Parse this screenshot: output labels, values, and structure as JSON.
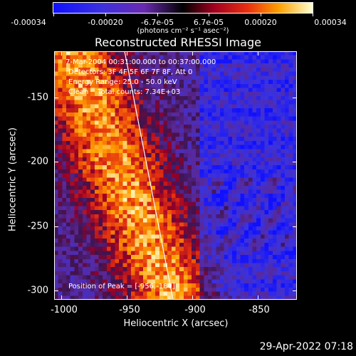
{
  "colorbar": {
    "tick_labels": [
      "-0.00034",
      "-0.00020",
      "-6.7e-05",
      "6.7e-05",
      "0.00020",
      "0.00034"
    ],
    "units": "(photons cm⁻² s⁻¹ asec⁻²)"
  },
  "title": "Reconstructed RHESSI Image",
  "info": {
    "time": "7-Mar-2004 00:31:00.000 to 00:37:00.000",
    "detectors": "Detectors: 3F 4F 5F 6F 7F 8F, Att 0",
    "energy": "Energy Range: 25.0 - 50.0 keV",
    "clean": "Clean    Total counts: 7.34E+03",
    "peak": "Position of Peak = [-956,-187]"
  },
  "axes": {
    "xlabel": "Heliocentric X (arcsec)",
    "ylabel": "Heliocentric Y (arcsec)",
    "xticks": [
      "-1000",
      "-950",
      "-900",
      "-850"
    ],
    "yticks": [
      "-150",
      "-200",
      "-250",
      "-300"
    ]
  },
  "timestamp": "29-Apr-2022 07:18"
}
